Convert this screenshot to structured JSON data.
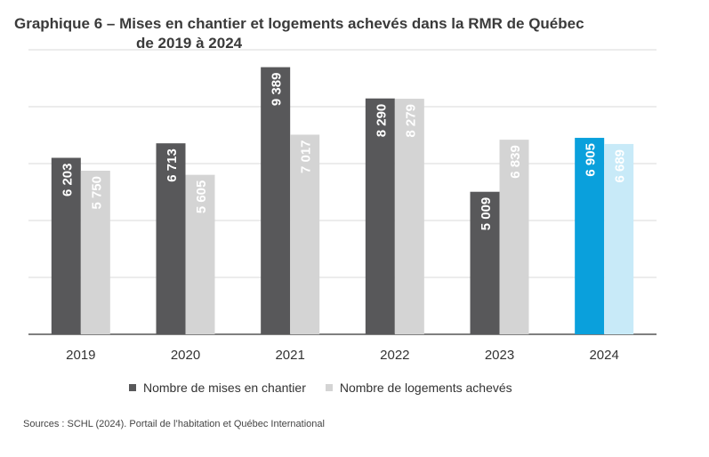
{
  "title": {
    "line1": "Graphique 6 – Mises en chantier et logements achevés dans la RMR de Québec",
    "line2": "de 2019 à 2024"
  },
  "chart_data": {
    "type": "bar",
    "categories": [
      "2019",
      "2020",
      "2021",
      "2022",
      "2023",
      "2024"
    ],
    "series": [
      {
        "name": "Nombre de mises en chantier",
        "values": [
          6203,
          6713,
          9389,
          8290,
          5009,
          6905
        ],
        "labels": [
          "6 203",
          "6 713",
          "9 389",
          "8 290",
          "5 009",
          "6 905"
        ]
      },
      {
        "name": "Nombre de logements achevés",
        "values": [
          5750,
          5605,
          7017,
          8279,
          6839,
          6689
        ],
        "labels": [
          "5 750",
          "5 605",
          "7 017",
          "8 279",
          "6 839",
          "6 689"
        ]
      }
    ],
    "ylim": [
      0,
      10000
    ],
    "grid": true,
    "legend_position": "bottom",
    "colors": {
      "series1": "#58585a",
      "series2": "#d4d4d4",
      "series1_highlight": "#0aa0dc",
      "series2_highlight": "#c8eaf8",
      "grid": "#d9d9d9",
      "axis": "#555555"
    },
    "highlight_category": "2024"
  },
  "source": "Sources : SCHL (2024). Portail de l’habitation et Québec International"
}
